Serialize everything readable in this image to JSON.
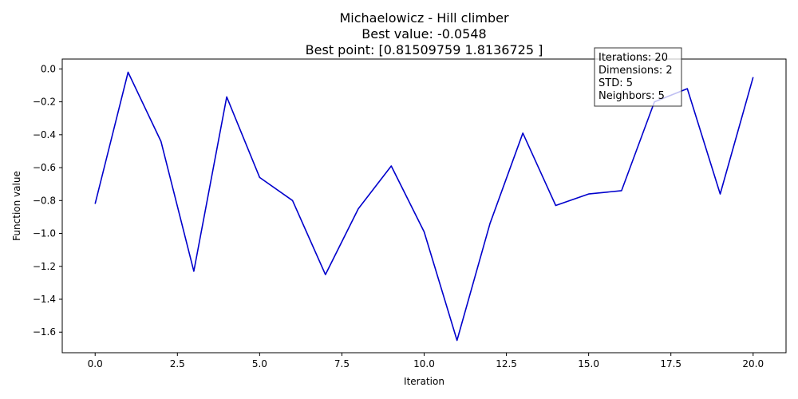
{
  "chart_data": {
    "type": "line",
    "title": [
      "Michaelowicz - Hill climber",
      "Best value: -0.0548",
      "Best point: [0.81509759 1.8136725 ]"
    ],
    "xlabel": "Iteration",
    "ylabel": "Function value",
    "xlim": [
      -1,
      21
    ],
    "ylim": [
      -1.725,
      0.06
    ],
    "xticks": [
      0,
      2.5,
      5,
      7.5,
      10,
      12.5,
      15,
      17.5,
      20
    ],
    "xtick_labels": [
      "0.0",
      "2.5",
      "5.0",
      "7.5",
      "10.0",
      "12.5",
      "15.0",
      "17.5",
      "20.0"
    ],
    "yticks": [
      0,
      -0.2,
      -0.4,
      -0.6,
      -0.8,
      -1.0,
      -1.2,
      -1.4,
      -1.6
    ],
    "ytick_labels": [
      "0.0",
      "−0.2",
      "−0.4",
      "−0.6",
      "−0.8",
      "−1.0",
      "−1.2",
      "−1.4",
      "−1.6"
    ],
    "grid": false,
    "series": [
      {
        "color": "#0000cc",
        "x": [
          0,
          1,
          2,
          3,
          4,
          5,
          6,
          7,
          8,
          9,
          10,
          11,
          12,
          13,
          14,
          15,
          16,
          17,
          18,
          19,
          20
        ],
        "y": [
          -0.82,
          -0.02,
          -0.44,
          -1.23,
          -0.17,
          -0.66,
          -0.8,
          -1.25,
          -0.85,
          -0.59,
          -0.99,
          -1.65,
          -0.94,
          -0.39,
          -0.83,
          -0.76,
          -0.74,
          -0.2,
          -0.12,
          -0.76,
          -0.05
        ]
      }
    ],
    "annotation": {
      "lines": [
        "Iterations: 20",
        "Dimensions: 2",
        "STD: 5",
        "Neighbors: 5"
      ]
    }
  }
}
